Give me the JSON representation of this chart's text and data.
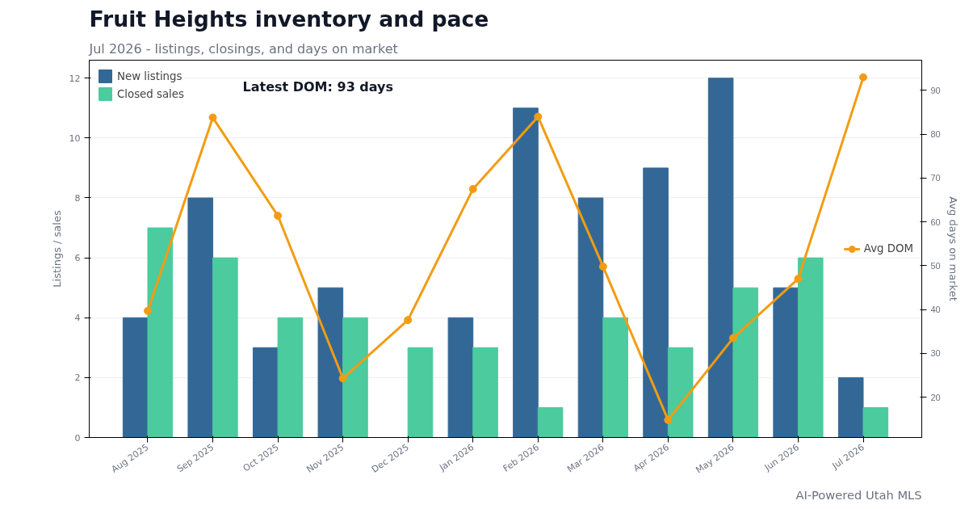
{
  "chart_data": {
    "type": "bar",
    "title": "Fruit Heights inventory and pace",
    "subtitle": "Jul 2026 - listings, closings, and days on market",
    "ylabel": "Listings / sales",
    "y2label": "Avg days on market",
    "categories": [
      "Aug 2025",
      "Sep 2025",
      "Oct 2025",
      "Nov 2025",
      "Dec 2025",
      "Jan 2026",
      "Feb 2026",
      "Mar 2026",
      "Apr 2026",
      "May 2026",
      "Jun 2026",
      "Jul 2026"
    ],
    "series": [
      {
        "name": "New listings",
        "color": "#336896",
        "values": [
          4,
          8,
          3,
          5,
          0,
          4,
          11,
          8,
          9,
          12,
          5,
          2
        ]
      },
      {
        "name": "Closed sales",
        "color": "#4bcb9e",
        "values": [
          7,
          6,
          4,
          4,
          3,
          3,
          1,
          4,
          3,
          5,
          6,
          1
        ]
      },
      {
        "name": "Avg DOM",
        "type": "line",
        "axis": "y2",
        "color": "#f39c12",
        "marker": "circle",
        "values": [
          39.7,
          83.8,
          61.4,
          24.3,
          37.6,
          67.5,
          84,
          49.8,
          14.8,
          33.5,
          47,
          93
        ]
      }
    ],
    "ylim": [
      0,
      12.6
    ],
    "yticks": [
      0,
      2,
      4,
      6,
      8,
      10,
      12
    ],
    "y2lim": [
      10.8,
      96.9
    ],
    "y2ticks": [
      20,
      30,
      40,
      50,
      60,
      70,
      80,
      90
    ],
    "grid": "y",
    "legend": "top",
    "annotations": [
      "Latest DOM: 93 days",
      "AI-Powered Utah MLS"
    ]
  }
}
